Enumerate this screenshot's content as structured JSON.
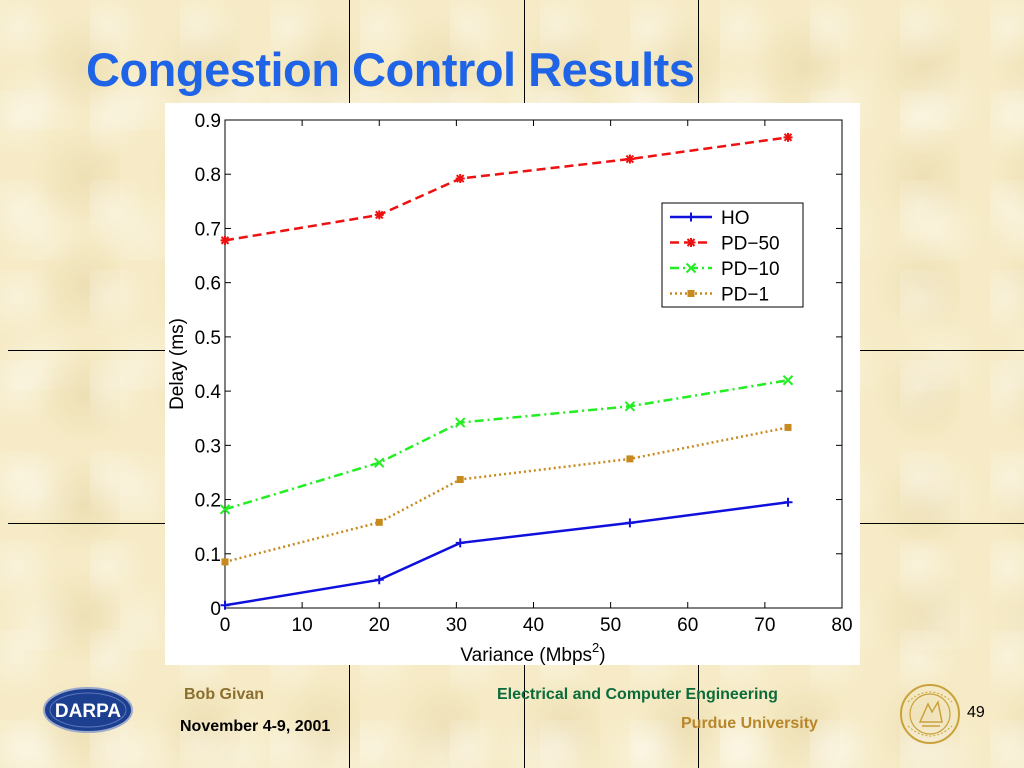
{
  "slide": {
    "title": "Congestion Control Results",
    "author": "Bob Givan",
    "date": "November 4-9, 2001",
    "department": "Electrical and Computer Engineering",
    "university": "Purdue University",
    "page_number": "49",
    "logo_text": "DARPA"
  },
  "colors": {
    "title": "#1f63e6",
    "department": "#0b6b3a",
    "university": "#b8862b",
    "background": "#f6ebc6"
  },
  "icons": {
    "left_logo": "darpa-logo-icon",
    "right_logo": "purdue-seal-icon"
  },
  "chart_data": {
    "type": "line",
    "xlabel": "Variance (Mbps",
    "xlabel_superscript": "2",
    "xlabel_suffix": ")",
    "ylabel": "Delay (ms)",
    "xlim": [
      0,
      80
    ],
    "ylim": [
      0,
      0.9
    ],
    "xticks": [
      "0",
      "10",
      "20",
      "30",
      "40",
      "50",
      "60",
      "70",
      "80"
    ],
    "yticks": [
      "0",
      "0.1",
      "0.2",
      "0.3",
      "0.4",
      "0.5",
      "0.6",
      "0.7",
      "0.8",
      "0.9"
    ],
    "grid": false,
    "legend_position": "right",
    "x": [
      0,
      20,
      30.5,
      52.5,
      73
    ],
    "series": [
      {
        "name": "HO",
        "values": [
          0.005,
          0.052,
          0.12,
          0.157,
          0.195
        ],
        "color": "#1010dd",
        "style": "solid",
        "marker": "plus"
      },
      {
        "name": "PD−50",
        "values": [
          0.678,
          0.725,
          0.792,
          0.828,
          0.868
        ],
        "color": "#ee1111",
        "style": "dashed",
        "marker": "star"
      },
      {
        "name": "PD−10",
        "values": [
          0.182,
          0.268,
          0.342,
          0.372,
          0.42
        ],
        "color": "#22ee22",
        "style": "dashdot",
        "marker": "cross"
      },
      {
        "name": "PD−1",
        "values": [
          0.085,
          0.158,
          0.237,
          0.275,
          0.333
        ],
        "color": "#c88a1e",
        "style": "dotted",
        "marker": "square"
      }
    ]
  }
}
